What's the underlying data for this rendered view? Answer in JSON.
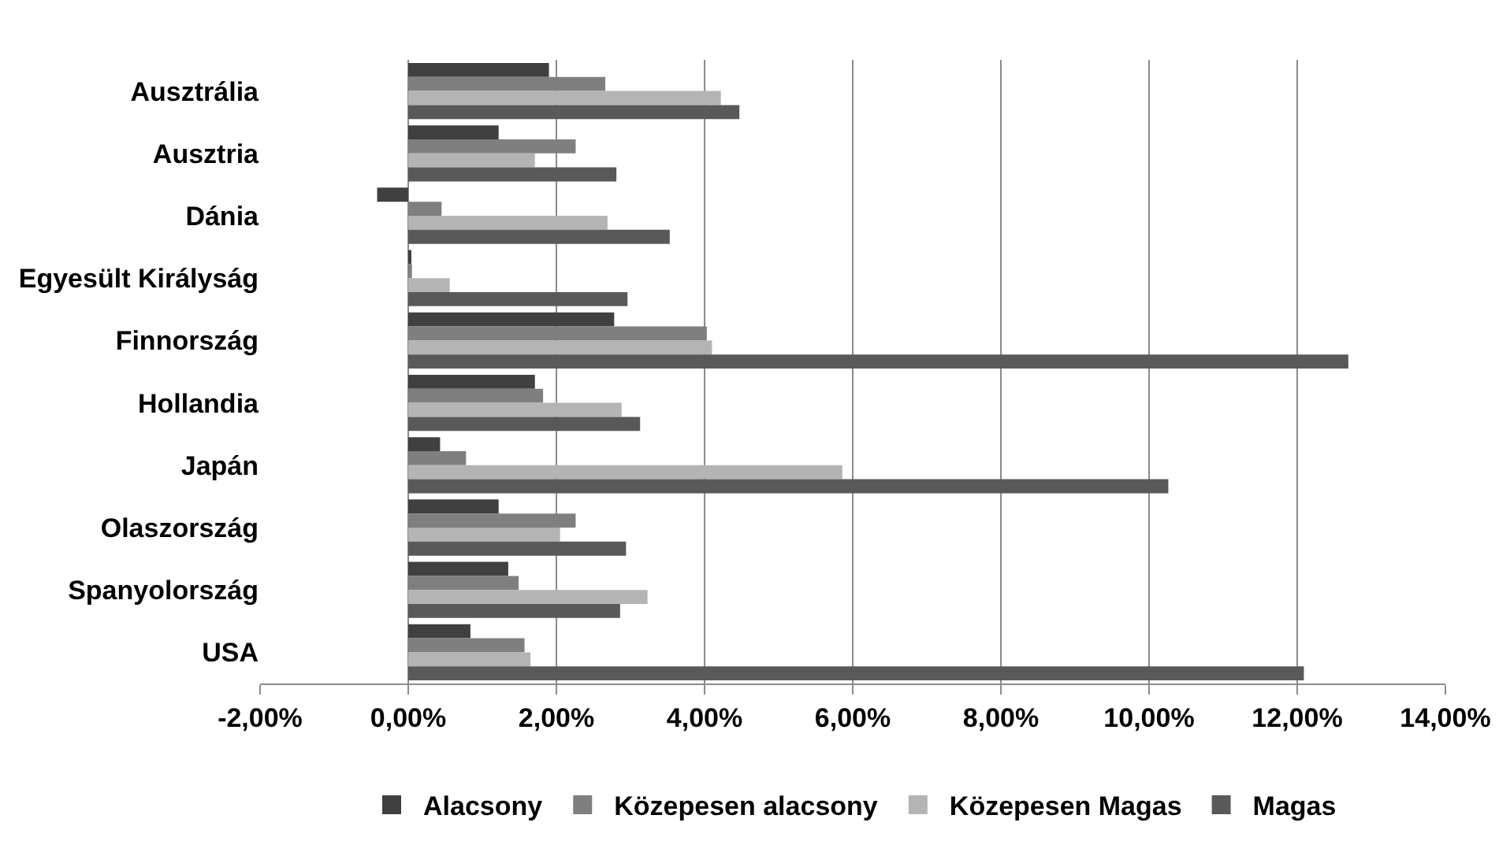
{
  "chart_data": {
    "type": "bar",
    "orientation": "horizontal",
    "categories": [
      "Ausztrália",
      "Ausztria",
      "Dánia",
      "Egyesült Királyság",
      "Finnország",
      "Hollandia",
      "Japán",
      "Olaszország",
      "Spanyolország",
      "USA"
    ],
    "series": [
      {
        "name": "Alacsony",
        "color": "#404040",
        "values": [
          1.9,
          1.22,
          -0.42,
          0.03,
          2.78,
          1.71,
          0.43,
          1.22,
          1.35,
          0.84
        ]
      },
      {
        "name": "Közepesen alacsony",
        "color": "#7f7f7f",
        "values": [
          2.66,
          2.26,
          0.45,
          0.05,
          4.03,
          1.82,
          0.78,
          2.26,
          1.49,
          1.57
        ]
      },
      {
        "name": "Közepesen Magas",
        "color": "#b4b4b4",
        "values": [
          4.22,
          1.71,
          2.69,
          0.56,
          4.1,
          2.88,
          5.86,
          2.05,
          3.23,
          1.65
        ]
      },
      {
        "name": "Magas",
        "color": "#595959",
        "values": [
          4.47,
          2.81,
          3.53,
          2.96,
          12.69,
          3.13,
          10.26,
          2.94,
          2.86,
          12.09
        ]
      }
    ],
    "xlim": [
      -2,
      14
    ],
    "xticks": [
      {
        "value": -2,
        "label": "-2,00%"
      },
      {
        "value": 0,
        "label": "0,00%"
      },
      {
        "value": 2,
        "label": "2,00%"
      },
      {
        "value": 4,
        "label": "4,00%"
      },
      {
        "value": 6,
        "label": "6,00%"
      },
      {
        "value": 8,
        "label": "8,00%"
      },
      {
        "value": 10,
        "label": "10,00%"
      },
      {
        "value": 12,
        "label": "12,00%"
      },
      {
        "value": 14,
        "label": "14,00%"
      }
    ],
    "grid": "x",
    "legend": "bottom"
  }
}
